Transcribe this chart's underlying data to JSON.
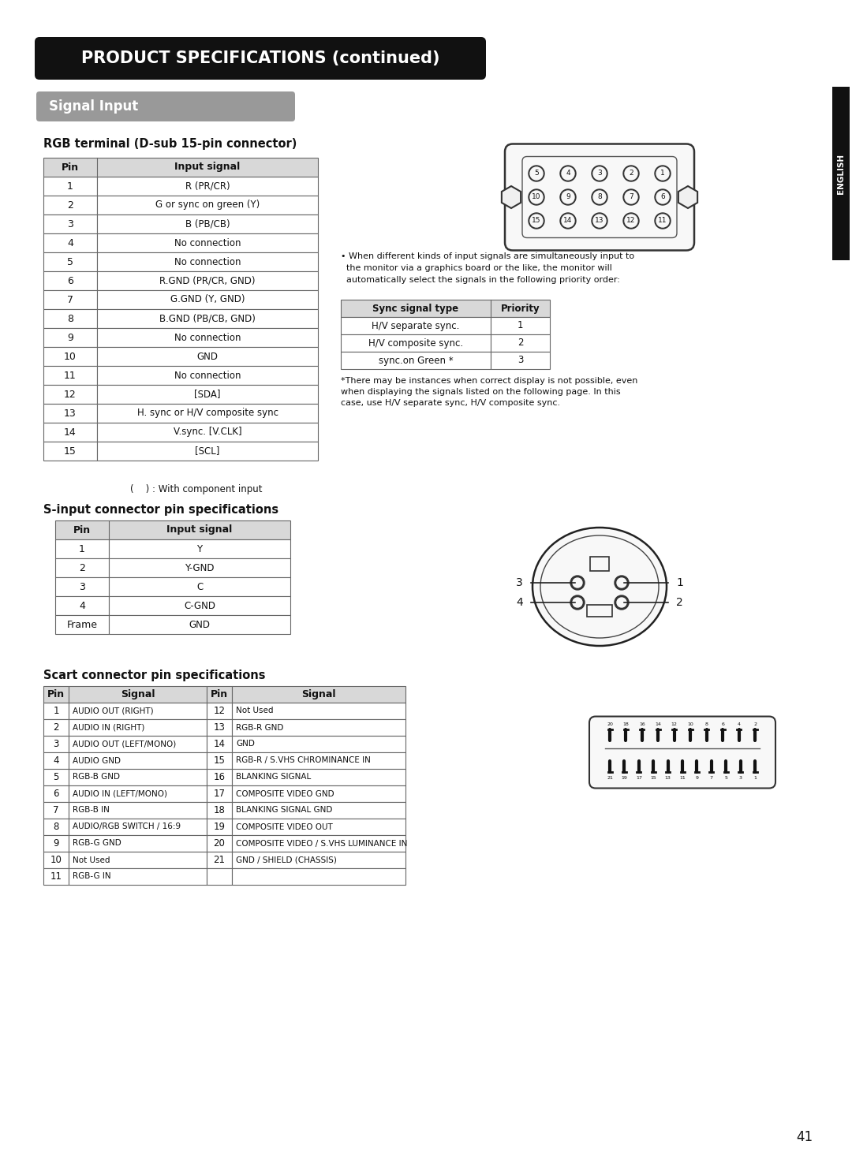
{
  "title": "PRODUCT SPECIFICATIONS (continued)",
  "section_title": "Signal Input",
  "rgb_title": "RGB terminal (D-sub 15-pin connector)",
  "rgb_headers": [
    "Pin",
    "Input signal"
  ],
  "rgb_rows": [
    [
      "1",
      "R (PR/CR)"
    ],
    [
      "2",
      "G or sync on green (Y)"
    ],
    [
      "3",
      "B (PB/CB)"
    ],
    [
      "4",
      "No connection"
    ],
    [
      "5",
      "No connection"
    ],
    [
      "6",
      "R.GND (PR/CR, GND)"
    ],
    [
      "7",
      "G.GND (Y, GND)"
    ],
    [
      "8",
      "B.GND (PB/CB, GND)"
    ],
    [
      "9",
      "No connection"
    ],
    [
      "10",
      "GND"
    ],
    [
      "11",
      "No connection"
    ],
    [
      "12",
      "[SDA]"
    ],
    [
      "13",
      "H. sync or H/V composite sync"
    ],
    [
      "14",
      "V.sync. [V.CLK]"
    ],
    [
      "15",
      "[SCL]"
    ]
  ],
  "rgb_note": "(    ) : With component input",
  "sync_note2_bullet": "• When different kinds of input signals are simultaneously input to",
  "sync_note2_line2": "  the monitor via a graphics board or the like, the monitor will",
  "sync_note2_line3": "  automatically select the signals in the following priority order:",
  "sync_title": "Sync signal type",
  "sync_priority_header": "Priority",
  "sync_rows": [
    [
      "H/V separate sync.",
      "1"
    ],
    [
      "H/V composite sync.",
      "2"
    ],
    [
      "sync.on Green *",
      "3"
    ]
  ],
  "sync_note": "*There may be instances when correct display is not possible, even\nwhen displaying the signals listed on the following page. In this\ncase, use H/V separate sync, H/V composite sync.",
  "sinput_title": "S-input connector pin specifications",
  "sinput_headers": [
    "Pin",
    "Input signal"
  ],
  "sinput_rows": [
    [
      "1",
      "Y"
    ],
    [
      "2",
      "Y-GND"
    ],
    [
      "3",
      "C"
    ],
    [
      "4",
      "C-GND"
    ],
    [
      "Frame",
      "GND"
    ]
  ],
  "scart_title": "Scart connector pin specifications",
  "scart_headers": [
    "Pin",
    "Signal",
    "Pin",
    "Signal"
  ],
  "scart_rows": [
    [
      "1",
      "AUDIO OUT (RIGHT)",
      "12",
      "Not Used"
    ],
    [
      "2",
      "AUDIO IN (RIGHT)",
      "13",
      "RGB-R GND"
    ],
    [
      "3",
      "AUDIO OUT (LEFT/MONO)",
      "14",
      "GND"
    ],
    [
      "4",
      "AUDIO GND",
      "15",
      "RGB-R / S.VHS CHROMINANCE IN"
    ],
    [
      "5",
      "RGB-B GND",
      "16",
      "BLANKING SIGNAL"
    ],
    [
      "6",
      "AUDIO IN (LEFT/MONO)",
      "17",
      "COMPOSITE VIDEO GND"
    ],
    [
      "7",
      "RGB-B IN",
      "18",
      "BLANKING SIGNAL GND"
    ],
    [
      "8",
      "AUDIO/RGB SWITCH / 16:9",
      "19",
      "COMPOSITE VIDEO OUT"
    ],
    [
      "9",
      "RGB-G GND",
      "20",
      "COMPOSITE VIDEO / S.VHS LUMINANCE IN"
    ],
    [
      "10",
      "Not Used",
      "21",
      "GND / SHIELD (CHASSIS)"
    ],
    [
      "11",
      "RGB-G IN",
      "",
      ""
    ]
  ],
  "page_number": "41",
  "english_label": "ENGLISH",
  "bg_color": "#ffffff",
  "title_bg": "#111111",
  "title_fg": "#ffffff",
  "section_bg": "#999999",
  "table_header_bg": "#d8d8d8",
  "table_border": "#666666",
  "text_color": "#111111"
}
